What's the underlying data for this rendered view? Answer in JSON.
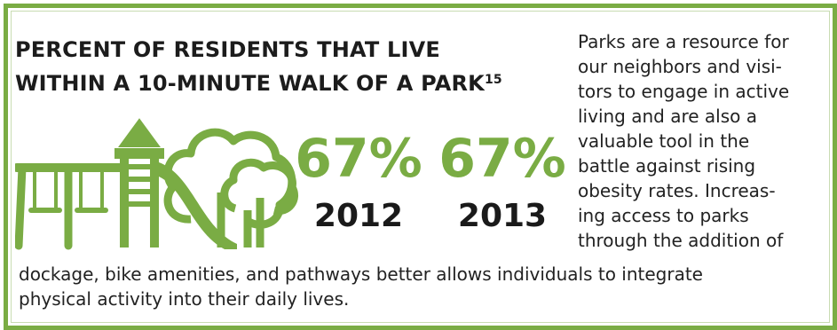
{
  "heading": {
    "line1": "PERCENT OF RESIDENTS THAT LIVE",
    "line2": "WITHIN A 10-MINUTE WALK OF A PARK",
    "footnote": "15"
  },
  "stats": [
    {
      "percent": "67%",
      "year": "2012"
    },
    {
      "percent": "67%",
      "year": "2013"
    }
  ],
  "body_text": {
    "side_lines": [
      "Parks are a resource for",
      "our neighbors and visi-",
      "tors to engage in active",
      "living and are also a",
      "valuable tool in the",
      "battle against rising",
      "obesity rates. Increas-",
      "ing access to parks",
      "through the addition of"
    ],
    "bottom_lines": [
      "dockage, bike amenities, and pathways better allows individuals to integrate",
      "physical activity into their daily lives."
    ]
  },
  "illustration": {
    "icons": [
      "swing-set-icon",
      "playground-slide-icon",
      "tree-icon"
    ],
    "color": "#7aac44"
  },
  "colors": {
    "accent": "#7aac44",
    "border": "#7aac44",
    "text": "#1c1c1c"
  }
}
